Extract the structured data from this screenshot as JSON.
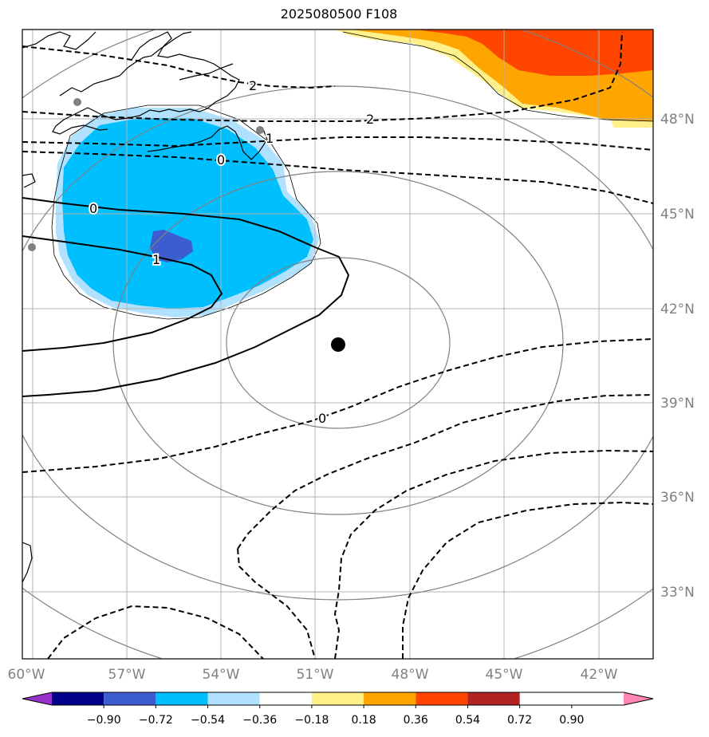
{
  "title": "2025080500 F108",
  "lon_labels": [
    "60°W",
    "57°W",
    "54°W",
    "51°W",
    "48°W",
    "45°W",
    "42°W"
  ],
  "lat_labels": [
    "48°N",
    "45°N",
    "42°N",
    "39°N",
    "36°N",
    "33°N"
  ],
  "contour_labels": [
    {
      "text": "2",
      "style": "dashed"
    },
    {
      "text": "2",
      "style": "dashed"
    },
    {
      "text": "1",
      "style": "dashed"
    },
    {
      "text": "0",
      "style": "dashed"
    },
    {
      "text": "0",
      "style": "solid"
    },
    {
      "text": "1",
      "style": "solid"
    },
    {
      "text": "0",
      "style": "dashed"
    }
  ],
  "colorbar": {
    "ticks": [
      "−0.90",
      "−0.72",
      "−0.54",
      "−0.36",
      "−0.18",
      "0.18",
      "0.36",
      "0.54",
      "0.72",
      "0.90"
    ],
    "colors": [
      "#9932cc",
      "#00008b",
      "#3c5ccf",
      "#00bfff",
      "#b0e2ff",
      "#ffffff",
      "#fff08a",
      "#ffa500",
      "#ff4500",
      "#b22222",
      "#ff85b3"
    ]
  },
  "colors": {
    "coast": "#000000",
    "grid": "#b3b3b3",
    "range_rings": "#808080",
    "center_marker": "#000000"
  },
  "center_marker": "storm-center"
}
